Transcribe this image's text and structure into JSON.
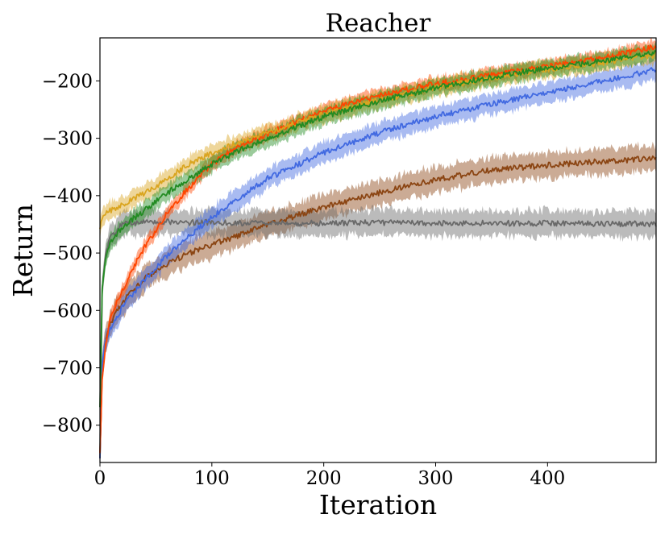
{
  "chart_data": {
    "type": "line",
    "title": "Reacher",
    "xlabel": "Iteration",
    "ylabel": "Return",
    "xlim": [
      0,
      497
    ],
    "ylim": [
      -865,
      -125
    ],
    "xticks": [
      0,
      100,
      200,
      300,
      400
    ],
    "yticks": [
      -800,
      -700,
      -600,
      -500,
      -400,
      -300,
      -200
    ],
    "ytick_labels": [
      "−800",
      "−700",
      "−600",
      "−500",
      "−400",
      "−300",
      "−200"
    ],
    "legend": "none",
    "grid": false,
    "shaded_band": "per-series spread around mean line",
    "series": [
      {
        "color": "#ff4500",
        "x": [
          0,
          2,
          5,
          10,
          20,
          30,
          40,
          50,
          60,
          80,
          100,
          120,
          150,
          200,
          250,
          300,
          350,
          400,
          450,
          497
        ],
        "y": [
          -850,
          -720,
          -660,
          -610,
          -565,
          -525,
          -490,
          -460,
          -430,
          -385,
          -345,
          -318,
          -292,
          -252,
          -225,
          -205,
          -190,
          -175,
          -160,
          -140
        ],
        "band": 12
      },
      {
        "color": "#228b22",
        "x": [
          0,
          2,
          5,
          10,
          20,
          30,
          40,
          50,
          60,
          80,
          100,
          120,
          150,
          200,
          250,
          300,
          350,
          400,
          450,
          497
        ],
        "y": [
          -770,
          -560,
          -510,
          -480,
          -455,
          -440,
          -425,
          -410,
          -395,
          -370,
          -345,
          -325,
          -300,
          -262,
          -235,
          -212,
          -193,
          -178,
          -165,
          -150
        ],
        "band": 15
      },
      {
        "color": "#daa520",
        "x": [
          0,
          2,
          5,
          10,
          20,
          30,
          40,
          50,
          60,
          80,
          100,
          120,
          150,
          200,
          250,
          300,
          350,
          400,
          450,
          497
        ],
        "y": [
          -460,
          -440,
          -432,
          -425,
          -415,
          -405,
          -395,
          -383,
          -370,
          -345,
          -325,
          -310,
          -290,
          -258,
          -233,
          -212,
          -195,
          -180,
          -168,
          -155
        ],
        "band": 15
      },
      {
        "color": "#4169e1",
        "x": [
          0,
          2,
          5,
          10,
          20,
          30,
          40,
          50,
          60,
          80,
          100,
          120,
          150,
          200,
          250,
          300,
          350,
          400,
          450,
          497
        ],
        "y": [
          -860,
          -700,
          -650,
          -630,
          -595,
          -570,
          -545,
          -525,
          -505,
          -470,
          -438,
          -410,
          -370,
          -325,
          -290,
          -262,
          -240,
          -220,
          -200,
          -180
        ],
        "band": 18
      },
      {
        "color": "#8b4513",
        "x": [
          0,
          2,
          5,
          10,
          20,
          30,
          40,
          50,
          60,
          80,
          100,
          120,
          150,
          200,
          250,
          300,
          350,
          400,
          450,
          497
        ],
        "y": [
          -860,
          -700,
          -650,
          -620,
          -585,
          -565,
          -545,
          -530,
          -518,
          -500,
          -485,
          -472,
          -450,
          -420,
          -395,
          -372,
          -355,
          -347,
          -340,
          -335
        ],
        "band": 22
      },
      {
        "color": "#696969",
        "x": [
          0,
          2,
          5,
          10,
          20,
          30,
          40,
          50,
          60,
          80,
          100,
          120,
          150,
          200,
          250,
          300,
          350,
          400,
          450,
          497
        ],
        "y": [
          -850,
          -560,
          -500,
          -470,
          -450,
          -447,
          -446,
          -445,
          -445,
          -447,
          -446,
          -448,
          -448,
          -448,
          -447,
          -448,
          -448,
          -448,
          -449,
          -449
        ],
        "band": 22
      }
    ]
  }
}
